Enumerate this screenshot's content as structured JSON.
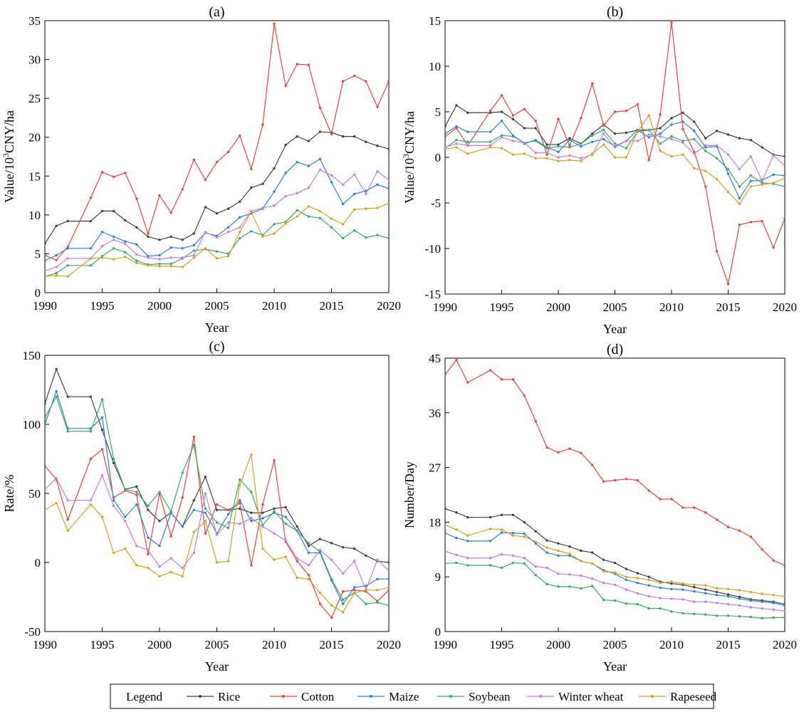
{
  "legend": {
    "title": "Legend"
  },
  "chart_data": [
    {
      "id": "a",
      "panel_label": "(a)",
      "type": "line",
      "xlabel": "Year",
      "ylabel": "Value/10³CNY/ha",
      "xlim": [
        1990,
        2020
      ],
      "ylim": [
        0,
        35
      ],
      "xticks": [
        1990,
        1995,
        2000,
        2005,
        2010,
        2015,
        2020
      ],
      "yticks": [
        0,
        5,
        10,
        15,
        20,
        25,
        30,
        35
      ],
      "x": [
        1990,
        1991,
        1992,
        1994,
        1995,
        1996,
        1997,
        1998,
        1999,
        2000,
        2001,
        2002,
        2003,
        2004,
        2005,
        2006,
        2007,
        2008,
        2009,
        2010,
        2011,
        2012,
        2013,
        2014,
        2015,
        2016,
        2017,
        2018,
        2019,
        2020
      ],
      "series": [
        {
          "name": "Rice",
          "color": "#404040",
          "values": [
            6.3,
            8.6,
            9.2,
            9.2,
            10.5,
            10.5,
            9.3,
            8.4,
            7.2,
            6.8,
            7.2,
            6.8,
            7.6,
            11.0,
            10.2,
            10.8,
            11.7,
            13.5,
            14.0,
            16.0,
            19.0,
            20.1,
            19.5,
            20.7,
            20.6,
            20.1,
            20.1,
            19.4,
            18.9,
            18.5
          ]
        },
        {
          "name": "Cotton",
          "color": "#e8433e",
          "values": [
            4.8,
            4.2,
            5.9,
            12.2,
            15.5,
            14.9,
            15.4,
            12.1,
            7.6,
            12.5,
            10.3,
            13.3,
            17.1,
            14.5,
            16.8,
            18.1,
            20.2,
            15.9,
            21.6,
            34.6,
            26.6,
            29.4,
            29.3,
            23.8,
            20.4,
            27.2,
            27.9,
            27.2,
            23.9,
            27.2
          ]
        },
        {
          "name": "Maize",
          "color": "#2f7fd1",
          "values": [
            4.1,
            4.8,
            5.7,
            5.7,
            7.8,
            7.2,
            6.6,
            6.2,
            4.7,
            4.8,
            5.8,
            5.7,
            6.1,
            7.7,
            7.3,
            8.4,
            9.7,
            10.2,
            10.8,
            13.0,
            15.4,
            16.8,
            16.3,
            17.2,
            14.2,
            11.4,
            12.7,
            13.1,
            13.9,
            13.4
          ]
        },
        {
          "name": "Soybean",
          "color": "#3aa86a",
          "values": [
            2.1,
            2.5,
            3.5,
            3.5,
            4.7,
            5.7,
            5.2,
            4.1,
            3.6,
            3.7,
            3.7,
            4.4,
            5.4,
            5.6,
            5.3,
            5.0,
            7.0,
            7.9,
            7.4,
            8.8,
            9.1,
            10.6,
            9.8,
            9.6,
            8.4,
            7.0,
            8.0,
            7.1,
            7.4,
            7.0
          ]
        },
        {
          "name": "Winter wheat",
          "color": "#c07ee0",
          "values": [
            2.8,
            3.3,
            4.4,
            4.4,
            6.0,
            6.8,
            6.3,
            4.9,
            4.5,
            4.3,
            4.5,
            4.5,
            4.8,
            7.8,
            7.1,
            7.8,
            8.4,
            10.5,
            10.9,
            11.2,
            12.4,
            12.8,
            13.5,
            15.8,
            15.1,
            13.9,
            15.2,
            12.7,
            15.6,
            14.5
          ]
        },
        {
          "name": "Rapeseed",
          "color": "#d4a320",
          "values": [
            2.1,
            2.2,
            2.1,
            4.4,
            4.5,
            4.3,
            4.6,
            3.8,
            3.5,
            3.4,
            3.4,
            3.3,
            4.5,
            5.7,
            4.4,
            4.7,
            7.8,
            10.4,
            7.2,
            7.6,
            8.9,
            9.8,
            11.1,
            10.5,
            9.5,
            8.8,
            10.7,
            10.8,
            10.9,
            11.5
          ]
        }
      ]
    },
    {
      "id": "b",
      "panel_label": "(b)",
      "type": "line",
      "xlabel": "Year",
      "ylabel": "Value/10³CNY/ha",
      "xlim": [
        1990,
        2020
      ],
      "ylim": [
        -15,
        15
      ],
      "xticks": [
        1990,
        1995,
        2000,
        2005,
        2010,
        2015,
        2020
      ],
      "yticks": [
        -15,
        -10,
        -5,
        0,
        5,
        10,
        15
      ],
      "x": [
        1990,
        1991,
        1992,
        1994,
        1995,
        1996,
        1997,
        1998,
        1999,
        2000,
        2001,
        2002,
        2003,
        2004,
        2005,
        2006,
        2007,
        2008,
        2009,
        2010,
        2011,
        2012,
        2013,
        2014,
        2015,
        2016,
        2017,
        2018,
        2019,
        2020
      ],
      "series": [
        {
          "name": "Rice",
          "color": "#404040",
          "values": [
            3.4,
            5.7,
            4.9,
            4.9,
            5.0,
            4.2,
            3.2,
            3.2,
            1.4,
            1.4,
            2.1,
            1.5,
            2.6,
            3.6,
            2.6,
            2.7,
            3.0,
            3.0,
            3.2,
            4.3,
            4.9,
            3.9,
            2.1,
            2.9,
            2.5,
            2.1,
            1.9,
            1.1,
            0.3,
            0.1
          ]
        },
        {
          "name": "Cotton",
          "color": "#e8433e",
          "values": [
            2.3,
            3.2,
            1.3,
            5.1,
            6.8,
            4.6,
            5.3,
            4.0,
            0.3,
            4.2,
            1.3,
            4.3,
            8.1,
            3.5,
            5.0,
            5.1,
            5.8,
            -0.3,
            4.7,
            14.8,
            3.1,
            0.6,
            -3.2,
            -10.3,
            -13.9,
            -7.4,
            -7.1,
            -7.0,
            -9.9,
            -6.7
          ]
        },
        {
          "name": "Maize",
          "color": "#2f7fd1",
          "values": [
            2.6,
            3.4,
            2.8,
            2.8,
            4.0,
            2.4,
            1.5,
            1.9,
            1.1,
            0.6,
            1.9,
            1.2,
            1.7,
            2.0,
            1.2,
            1.8,
            3.0,
            2.2,
            2.6,
            3.6,
            3.9,
            2.9,
            1.1,
            1.2,
            -1.8,
            -4.5,
            -2.6,
            -2.5,
            -1.9,
            -2.0
          ]
        },
        {
          "name": "Soybean",
          "color": "#3aa86a",
          "values": [
            1.0,
            1.9,
            1.7,
            1.7,
            2.4,
            2.3,
            1.6,
            1.8,
            1.0,
            1.2,
            1.1,
            1.5,
            2.4,
            3.0,
            1.5,
            1.0,
            2.8,
            3.0,
            1.5,
            2.3,
            1.8,
            2.0,
            0.7,
            -0.1,
            -1.3,
            -3.2,
            -2.0,
            -2.8,
            -2.9,
            -3.2
          ]
        },
        {
          "name": "Winter wheat",
          "color": "#c07ee0",
          "values": [
            1.1,
            1.5,
            1.3,
            1.3,
            2.2,
            1.8,
            1.6,
            0.5,
            0.5,
            0.0,
            0.2,
            -0.1,
            0.3,
            2.6,
            1.1,
            1.8,
            1.8,
            2.5,
            2.3,
            2.0,
            1.6,
            0.4,
            1.3,
            1.3,
            0.3,
            -1.3,
            0.1,
            -2.6,
            0.2,
            -0.9
          ]
        },
        {
          "name": "Rapeseed",
          "color": "#d4a320",
          "values": [
            0.9,
            1.1,
            0.4,
            1.1,
            1.0,
            0.3,
            0.4,
            -0.1,
            -0.1,
            -0.4,
            -0.3,
            -0.4,
            0.4,
            1.4,
            0.0,
            0.0,
            2.8,
            4.6,
            0.7,
            0.1,
            0.3,
            -1.2,
            -1.5,
            -2.4,
            -3.8,
            -5.1,
            -3.2,
            -3.0,
            -2.8,
            -2.3
          ]
        }
      ]
    },
    {
      "id": "c",
      "panel_label": "(c)",
      "type": "line",
      "xlabel": "Year",
      "ylabel": "Rate/%",
      "xlim": [
        1990,
        2020
      ],
      "ylim": [
        -50,
        150
      ],
      "xticks": [
        1990,
        1995,
        2000,
        2005,
        2010,
        2015,
        2020
      ],
      "yticks": [
        -50,
        0,
        50,
        100,
        150
      ],
      "x": [
        1990,
        1991,
        1992,
        1994,
        1995,
        1996,
        1997,
        1998,
        1999,
        2000,
        2001,
        2002,
        2003,
        2004,
        2005,
        2006,
        2007,
        2008,
        2009,
        2010,
        2011,
        2012,
        2013,
        2014,
        2015,
        2016,
        2017,
        2018,
        2019,
        2020
      ],
      "series": [
        {
          "name": "Rice",
          "color": "#404040",
          "values": [
            115,
            140,
            120,
            120,
            96,
            72,
            53,
            55,
            38,
            30,
            36,
            26,
            45,
            62,
            38,
            38,
            39,
            36,
            36,
            39,
            40,
            26,
            12,
            17,
            14,
            11,
            10,
            5,
            1,
            0
          ]
        },
        {
          "name": "Cotton",
          "color": "#e8433e",
          "values": [
            70,
            60,
            31,
            75,
            82,
            47,
            52,
            49,
            6,
            50,
            19,
            47,
            91,
            21,
            42,
            38,
            43,
            -2,
            42,
            74,
            15,
            1,
            -9,
            -30,
            -40,
            -21,
            -20,
            -21,
            -28,
            -20
          ]
        },
        {
          "name": "Maize",
          "color": "#2f7fd1",
          "values": [
            100,
            124,
            97,
            97,
            105,
            45,
            33,
            42,
            18,
            12,
            36,
            26,
            38,
            36,
            21,
            35,
            45,
            30,
            32,
            36,
            33,
            23,
            7,
            7,
            -13,
            -30,
            -18,
            -17,
            -12,
            -12
          ]
        },
        {
          "name": "Soybean",
          "color": "#3aa86a",
          "values": [
            105,
            120,
            95,
            95,
            118,
            75,
            53,
            51,
            41,
            51,
            37,
            65,
            85,
            39,
            29,
            25,
            60,
            51,
            27,
            37,
            28,
            23,
            14,
            8,
            -12,
            -27,
            -22,
            -30,
            -29,
            -31
          ]
        },
        {
          "name": "Winter wheat",
          "color": "#c07ee0",
          "values": [
            53,
            61,
            45,
            45,
            63,
            41,
            30,
            12,
            9,
            -3,
            3,
            -4,
            7,
            50,
            20,
            29,
            28,
            32,
            26,
            21,
            16,
            3,
            -2,
            9,
            2,
            -8,
            1,
            -20,
            2,
            -6
          ]
        },
        {
          "name": "Rapeseed",
          "color": "#d4a320",
          "values": [
            38,
            43,
            23,
            42,
            33,
            7,
            10,
            -2,
            -4,
            -10,
            -7,
            -10,
            22,
            30,
            0,
            1,
            56,
            78,
            10,
            2,
            4,
            -11,
            -12,
            -22,
            -31,
            -36,
            -22,
            -20,
            -20,
            -18
          ]
        }
      ]
    },
    {
      "id": "d",
      "panel_label": "(d)",
      "type": "line",
      "xlabel": "Year",
      "ylabel": "Number/Day",
      "xlim": [
        1990,
        2020
      ],
      "ylim": [
        0,
        45
      ],
      "xticks": [
        1990,
        1995,
        2000,
        2005,
        2010,
        2015,
        2020
      ],
      "yticks": [
        0,
        9,
        18,
        27,
        36,
        45
      ],
      "x": [
        1990,
        1991,
        1992,
        1994,
        1995,
        1996,
        1997,
        1998,
        1999,
        2000,
        2001,
        2002,
        2003,
        2004,
        2005,
        2006,
        2007,
        2008,
        2009,
        2010,
        2011,
        2012,
        2013,
        2014,
        2015,
        2016,
        2017,
        2018,
        2019,
        2020
      ],
      "series": [
        {
          "name": "Rice",
          "color": "#404040",
          "values": [
            20.2,
            19.6,
            18.8,
            18.8,
            19.2,
            19.2,
            18.0,
            16.5,
            15.0,
            14.5,
            14.0,
            13.3,
            13.0,
            11.8,
            11.3,
            10.3,
            9.6,
            9.0,
            8.2,
            7.9,
            7.7,
            7.3,
            6.9,
            6.5,
            6.1,
            5.7,
            5.3,
            5.1,
            4.9,
            4.5
          ]
        },
        {
          "name": "Cotton",
          "color": "#e8433e",
          "values": [
            42.3,
            44.7,
            41.0,
            43.0,
            41.5,
            41.5,
            38.8,
            34.6,
            30.3,
            29.5,
            30.1,
            29.4,
            27.4,
            24.7,
            24.9,
            25.1,
            24.9,
            23.2,
            21.8,
            21.8,
            20.4,
            20.4,
            19.6,
            18.4,
            17.2,
            16.6,
            15.6,
            13.5,
            11.7,
            10.9
          ]
        },
        {
          "name": "Maize",
          "color": "#2f7fd1",
          "values": [
            16.2,
            15.4,
            14.9,
            14.9,
            16.3,
            16.2,
            16.1,
            14.5,
            13.0,
            12.5,
            12.5,
            11.6,
            11.2,
            10.1,
            9.5,
            8.5,
            8.0,
            7.6,
            7.2,
            7.0,
            6.9,
            6.6,
            6.3,
            6.0,
            5.8,
            5.4,
            5.1,
            4.9,
            4.7,
            4.3
          ]
        },
        {
          "name": "Soybean",
          "color": "#3aa86a",
          "values": [
            11.2,
            11.3,
            10.9,
            10.9,
            10.5,
            11.3,
            11.2,
            9.3,
            7.8,
            7.4,
            7.4,
            7.1,
            7.5,
            5.2,
            5.1,
            4.6,
            4.5,
            3.8,
            3.8,
            3.3,
            3.0,
            2.9,
            2.8,
            2.6,
            2.6,
            2.5,
            2.4,
            2.2,
            2.3,
            2.3
          ]
        },
        {
          "name": "Winter wheat",
          "color": "#c07ee0",
          "values": [
            13.2,
            12.6,
            12.1,
            12.1,
            12.7,
            12.5,
            12.1,
            10.7,
            10.5,
            9.5,
            9.4,
            9.2,
            8.7,
            8.0,
            7.7,
            6.9,
            6.3,
            5.8,
            5.5,
            5.4,
            5.3,
            4.9,
            4.9,
            4.7,
            4.5,
            4.3,
            4.0,
            3.8,
            3.6,
            3.4
          ]
        },
        {
          "name": "Rapeseed",
          "color": "#d4a320",
          "values": [
            17.5,
            16.8,
            15.8,
            16.9,
            16.8,
            15.8,
            15.6,
            14.8,
            13.8,
            13.3,
            12.8,
            11.6,
            11.2,
            9.9,
            9.7,
            9.0,
            8.8,
            8.5,
            8.0,
            8.2,
            7.9,
            7.7,
            7.6,
            7.1,
            7.0,
            6.8,
            6.5,
            6.2,
            6.0,
            5.8
          ]
        }
      ]
    }
  ]
}
